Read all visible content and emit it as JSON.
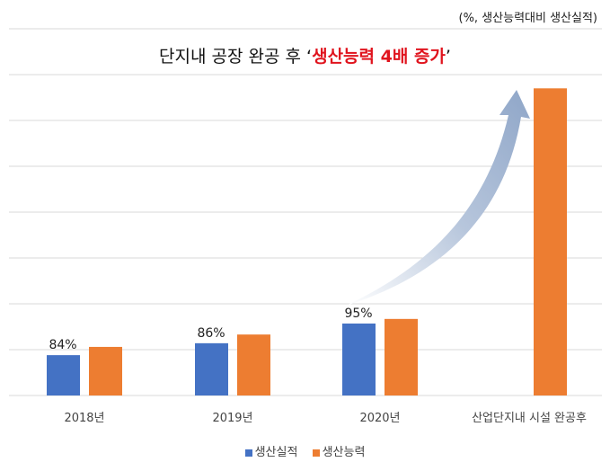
{
  "chart_data": {
    "type": "bar",
    "title": "단지내 공장 완공 후 ",
    "title_highlight": "생산능력 4배 증가",
    "unit_note": "(%, 생산능력대비 생산실적)",
    "categories": [
      "2018년",
      "2019년",
      "2020년",
      "산업단지내 시설 완공후"
    ],
    "series": [
      {
        "name": "생산실적",
        "color": "#4472c4",
        "values": [
          0.88,
          1.14,
          1.57,
          null
        ],
        "labels": [
          "84%",
          "86%",
          "95%",
          ""
        ]
      },
      {
        "name": "생산능력",
        "color": "#ed7d31",
        "values": [
          1.06,
          1.33,
          1.67,
          6.7
        ]
      }
    ],
    "ylim": [
      0,
      8
    ],
    "grid": true,
    "legend": "bottom",
    "highlight_color": "#e0141e",
    "annotation_arrow": "curved upward arrow from 2020 toward final bar"
  }
}
